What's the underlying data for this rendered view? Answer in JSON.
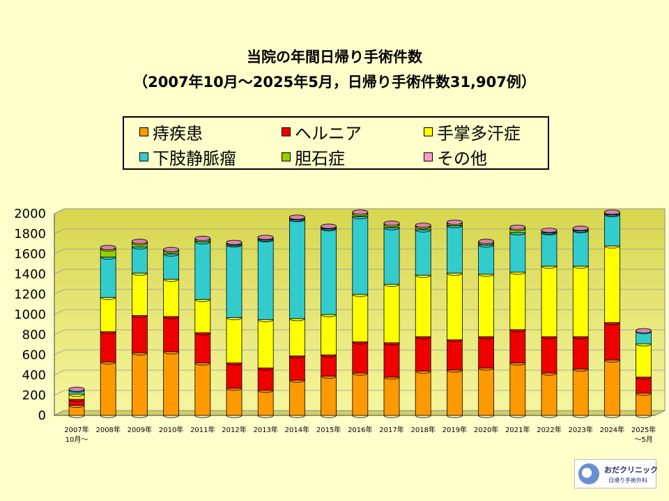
{
  "title": "当院の年間日帰り手術件数",
  "subtitle": "（2007年10月～2025年5月，日帰り手術件数31,907例）",
  "logo": {
    "name": "おだクリニック",
    "sub": "日帰り手術外科"
  },
  "colors": {
    "hemorrhoid": "#ff9900",
    "hernia": "#ee0000",
    "hyperhidrosis": "#ffff00",
    "varicose": "#33cccc",
    "gallstone": "#99cc00",
    "other": "#ff99cc"
  },
  "chart_data": {
    "type": "bar",
    "stacked": true,
    "categories": [
      "2007年\n10月～",
      "2008年",
      "2009年",
      "2010年",
      "2011年",
      "2012年",
      "2013年",
      "2014年",
      "2015年",
      "2016年",
      "2017年",
      "2018年",
      "2019年",
      "2020年",
      "2021年",
      "2022年",
      "2023年",
      "2024年",
      "2025年\n～5月"
    ],
    "ylim": [
      0,
      2000
    ],
    "yticks": [
      0,
      200,
      400,
      600,
      800,
      1000,
      1200,
      1400,
      1600,
      1800,
      2000
    ],
    "grid": true,
    "legend_position": "top",
    "series": [
      {
        "name": "痔疾患",
        "key": "hemorrhoid",
        "values": [
          100,
          530,
          620,
          630,
          520,
          270,
          250,
          350,
          390,
          420,
          380,
          440,
          450,
          470,
          520,
          420,
          460,
          550,
          220
        ]
      },
      {
        "name": "ヘルニア",
        "key": "hernia",
        "values": [
          60,
          300,
          370,
          350,
          300,
          250,
          220,
          240,
          210,
          310,
          340,
          340,
          300,
          310,
          330,
          360,
          320,
          370,
          160
        ]
      },
      {
        "name": "手掌多汗症",
        "key": "hyperhidrosis",
        "values": [
          50,
          340,
          420,
          370,
          330,
          450,
          480,
          370,
          400,
          470,
          580,
          610,
          660,
          620,
          570,
          700,
          700,
          760,
          330
        ]
      },
      {
        "name": "下肢静脈瘤",
        "key": "varicose",
        "values": [
          40,
          400,
          260,
          250,
          570,
          720,
          790,
          980,
          850,
          770,
          560,
          450,
          470,
          290,
          390,
          330,
          350,
          310,
          120
        ]
      },
      {
        "name": "胆石症",
        "key": "gallstone",
        "values": [
          0,
          80,
          40,
          30,
          20,
          10,
          10,
          10,
          10,
          30,
          30,
          30,
          20,
          20,
          40,
          10,
          10,
          10,
          0
        ]
      },
      {
        "name": "その他",
        "key": "other",
        "values": [
          10,
          15,
          15,
          15,
          15,
          15,
          15,
          15,
          15,
          15,
          15,
          15,
          15,
          15,
          15,
          15,
          15,
          15,
          10
        ]
      }
    ]
  }
}
